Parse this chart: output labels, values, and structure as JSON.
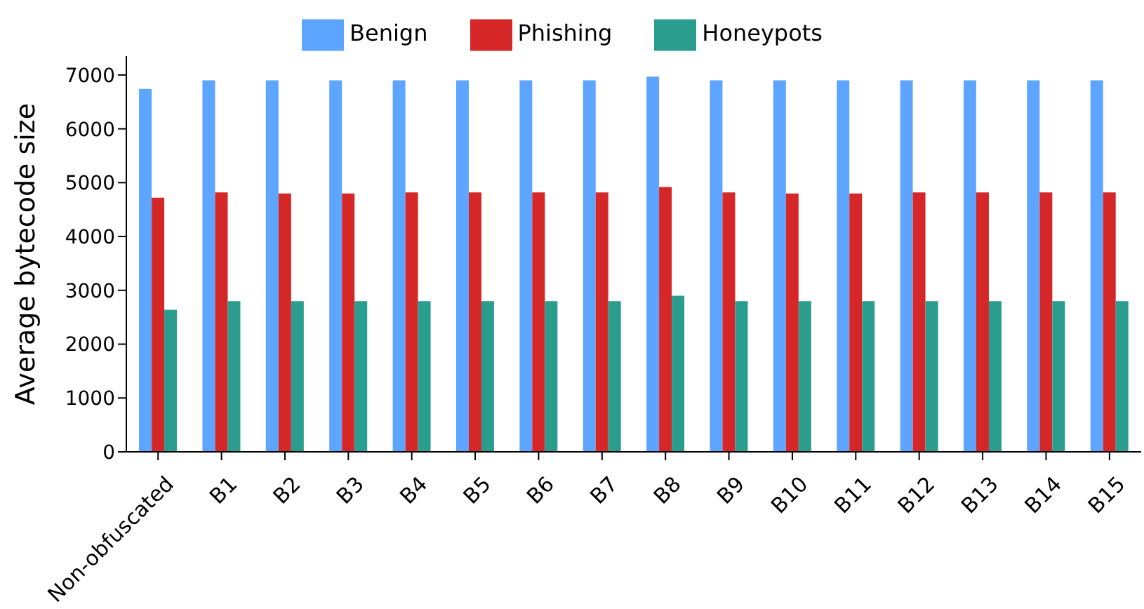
{
  "chart_data": {
    "type": "bar",
    "ylabel": "Average bytecode size",
    "categories": [
      "Non-obfuscated",
      "B1",
      "B2",
      "B3",
      "B4",
      "B5",
      "B6",
      "B7",
      "B8",
      "B9",
      "B10",
      "B11",
      "B12",
      "B13",
      "B14",
      "B15"
    ],
    "series": [
      {
        "name": "Benign",
        "color": "#5ea5ff",
        "values": [
          6740,
          6900,
          6900,
          6900,
          6900,
          6900,
          6900,
          6900,
          6970,
          6900,
          6900,
          6900,
          6900,
          6900,
          6900,
          6900
        ]
      },
      {
        "name": "Phishing",
        "color": "#d62728",
        "values": [
          4720,
          4820,
          4800,
          4800,
          4820,
          4820,
          4820,
          4820,
          4920,
          4820,
          4800,
          4800,
          4820,
          4820,
          4820,
          4820
        ]
      },
      {
        "name": "Honeypots",
        "color": "#2a9d8f",
        "values": [
          2640,
          2800,
          2800,
          2800,
          2800,
          2800,
          2800,
          2800,
          2900,
          2800,
          2800,
          2800,
          2800,
          2800,
          2800,
          2800
        ]
      }
    ],
    "ylim": [
      0,
      7350
    ],
    "yticks": [
      0,
      1000,
      2000,
      3000,
      4000,
      5000,
      6000,
      7000
    ],
    "grid": false,
    "legend": "top"
  }
}
